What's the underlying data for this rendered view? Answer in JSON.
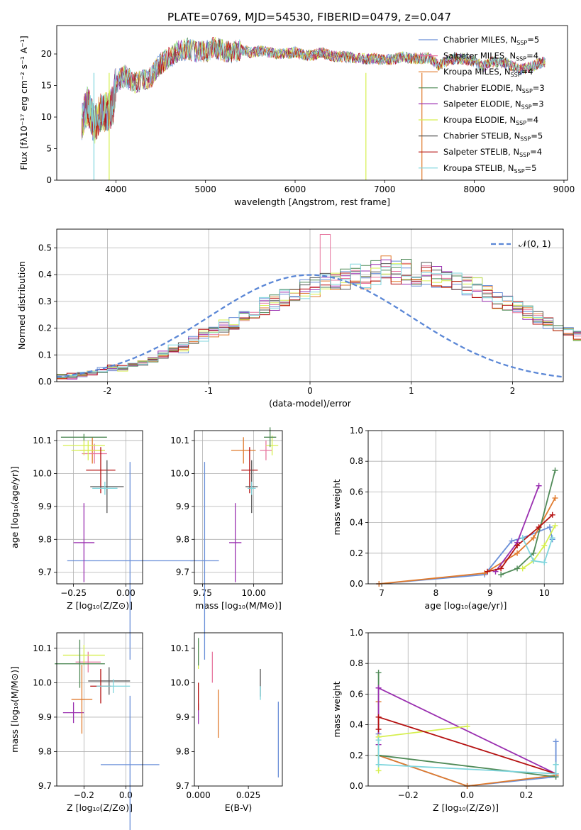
{
  "title": "PLATE=0769, MJD=54530, FIBERID=0479, z=0.047",
  "colors": {
    "chabrier_miles": "#6a8fd8",
    "salpeter_miles": "#e7779f",
    "kroupa_miles": "#e07a2c",
    "chabrier_elodie": "#4f8a57",
    "salpeter_elodie": "#9a2fb0",
    "kroupa_elodie": "#d6ef4f",
    "chabrier_stelib": "#555555",
    "salpeter_stelib": "#b51010",
    "kroupa_stelib": "#7fd5dd"
  },
  "legend": [
    {
      "text": "Chabrier MILES, N",
      "sub": "SSP",
      "tail": "=5",
      "color": "#6a8fd8"
    },
    {
      "text": "Salpeter MILES, N",
      "sub": "SSP",
      "tail": "=4",
      "color": "#e7779f"
    },
    {
      "text": "Kroupa MILES, N",
      "sub": "SSP",
      "tail": "=4",
      "color": "#e07a2c"
    },
    {
      "text": "Chabrier ELODIE, N",
      "sub": "SSP",
      "tail": "=3",
      "color": "#4f8a57"
    },
    {
      "text": "Salpeter ELODIE, N",
      "sub": "SSP",
      "tail": "=3",
      "color": "#9a2fb0"
    },
    {
      "text": "Kroupa ELODIE, N",
      "sub": "SSP",
      "tail": "=4",
      "color": "#d6ef4f"
    },
    {
      "text": "Chabrier STELIB, N",
      "sub": "SSP",
      "tail": "=5",
      "color": "#555555"
    },
    {
      "text": "Salpeter STELIB, N",
      "sub": "SSP",
      "tail": "=4",
      "color": "#b51010"
    },
    {
      "text": "Kroupa STELIB, N",
      "sub": "SSP",
      "tail": "=5",
      "color": "#7fd5dd"
    }
  ],
  "chart_data": [
    {
      "id": "spectrum",
      "type": "line",
      "xlabel": "wavelength [Angstrom, rest frame]",
      "ylabel": "Flux [fλ10⁻¹⁷ erg cm⁻² s⁻¹ A⁻¹]",
      "xlim": [
        3340,
        9040
      ],
      "ylim": [
        0,
        24.5
      ],
      "xticks": [
        4000,
        5000,
        6000,
        7000,
        8000,
        9000
      ],
      "yticks": [
        0,
        5,
        10,
        15,
        20
      ],
      "grid": false,
      "legend_position": "right",
      "x": [
        3620,
        3680,
        3720,
        3760,
        3820,
        3870,
        3930,
        3970,
        4000,
        4100,
        4200,
        4300,
        4400,
        4500,
        4600,
        4700,
        4800,
        4900,
        5000,
        5100,
        5200,
        5300,
        5400,
        5500,
        5600,
        5700,
        5800,
        5900,
        6000,
        6100,
        6200,
        6300,
        6400,
        6500,
        6600,
        6700,
        6800,
        6900,
        7000,
        7100,
        7200,
        7300,
        7400,
        7500,
        7600,
        7700,
        7800,
        7900,
        8000,
        8100,
        8200,
        8300,
        8400,
        8500,
        8600,
        8700,
        8800
      ],
      "y": [
        9.5,
        11.8,
        10.5,
        8.5,
        10.5,
        10.8,
        11.0,
        12.0,
        15.5,
        16.5,
        15.5,
        15.8,
        16.5,
        18.5,
        19.5,
        20.5,
        20.8,
        20.3,
        20.3,
        21.0,
        20.5,
        20.3,
        20.7,
        20.2,
        20.5,
        20.3,
        20.0,
        20.0,
        20.3,
        19.8,
        19.8,
        20.2,
        19.7,
        19.6,
        19.5,
        19.3,
        19.2,
        19.3,
        19.0,
        19.2,
        19.5,
        19.3,
        19.3,
        19.4,
        18.2,
        19.0,
        19.3,
        19.2,
        18.8,
        18.0,
        18.8,
        18.6,
        18.3,
        17.5,
        17.8,
        18.4,
        18.8
      ],
      "dropouts": [
        {
          "x": 3755,
          "ylo": 0,
          "color": "#7fd5dd"
        },
        {
          "x": 3925,
          "ylo": 0,
          "color": "#d6ef4f"
        },
        {
          "x": 6790,
          "ylo": 0,
          "color": "#d6ef4f"
        },
        {
          "x": 7415,
          "ylo": 0,
          "color": "#e07a2c"
        }
      ]
    },
    {
      "id": "residuals",
      "type": "histogram",
      "xlabel": "(data-model)/error",
      "ylabel": "Normed distribution",
      "xlim": [
        -2.5,
        2.5
      ],
      "ylim": [
        0,
        0.57
      ],
      "xticks": [
        -2,
        -1,
        0,
        1,
        2
      ],
      "yticks": [
        0.0,
        0.1,
        0.2,
        0.3,
        0.4,
        0.5
      ],
      "grid": true,
      "legend_label": "𝒩(0, 1)",
      "bin_width": 0.1,
      "bin_start": -2.5,
      "base_values": [
        0.02,
        0.02,
        0.03,
        0.03,
        0.04,
        0.05,
        0.05,
        0.06,
        0.07,
        0.08,
        0.1,
        0.12,
        0.13,
        0.15,
        0.17,
        0.19,
        0.2,
        0.22,
        0.24,
        0.26,
        0.28,
        0.3,
        0.31,
        0.33,
        0.35,
        0.36,
        0.37,
        0.38,
        0.39,
        0.4,
        0.4,
        0.41,
        0.42,
        0.41,
        0.41,
        0.4,
        0.4,
        0.39,
        0.38,
        0.37,
        0.36,
        0.35,
        0.33,
        0.31,
        0.3,
        0.28,
        0.26,
        0.24,
        0.22,
        0.2,
        0.19,
        0.17,
        0.15,
        0.13,
        0.12,
        0.1,
        0.09,
        0.08,
        0.07,
        0.06,
        0.05,
        0.04,
        0.04,
        0.03,
        0.03,
        0.02,
        0.02,
        0.02,
        0.02,
        0.02
      ],
      "peak_note": 0.55
    },
    {
      "id": "age-vs-Z",
      "type": "errorbar",
      "xlabel": "Z [log₁₀(Z/Z⊙)]",
      "ylabel": "age  [log₁₀(age/yr)]",
      "xlim": [
        -0.33,
        0.08
      ],
      "ylim": [
        9.665,
        10.13
      ],
      "xticks": [
        -0.25,
        0.0
      ],
      "xtick_labels": [
        "−0.25",
        "0.00"
      ],
      "yticks": [
        9.7,
        9.8,
        9.9,
        10.0,
        10.1
      ],
      "grid": true,
      "points": [
        {
          "x": 0.02,
          "xerr": 0.3,
          "y": 9.735,
          "yerr": 0.3,
          "c": "chabrier_miles"
        },
        {
          "x": -0.2,
          "xerr": 0.05,
          "y": 9.79,
          "yerr": 0.12,
          "c": "salpeter_elodie"
        },
        {
          "x": -0.16,
          "xerr": 0.06,
          "y": 10.07,
          "yerr": 0.04,
          "c": "kroupa_miles"
        },
        {
          "x": -0.15,
          "xerr": 0.06,
          "y": 10.06,
          "yerr": 0.03,
          "c": "salpeter_miles"
        },
        {
          "x": -0.2,
          "xerr": 0.1,
          "y": 10.085,
          "yerr": 0.03,
          "c": "kroupa_elodie"
        },
        {
          "x": -0.18,
          "xerr": 0.08,
          "y": 10.07,
          "yerr": 0.03,
          "c": "kroupa_elodie"
        },
        {
          "x": -0.2,
          "xerr": 0.11,
          "y": 10.11,
          "yerr": 0.01,
          "c": "chabrier_elodie"
        },
        {
          "x": -0.12,
          "xerr": 0.07,
          "y": 10.01,
          "yerr": 0.07,
          "c": "salpeter_stelib"
        },
        {
          "x": -0.09,
          "xerr": 0.08,
          "y": 9.96,
          "yerr": 0.08,
          "c": "chabrier_stelib"
        },
        {
          "x": -0.1,
          "xerr": 0.06,
          "y": 9.955,
          "yerr": 0.02,
          "c": "kroupa_stelib"
        }
      ]
    },
    {
      "id": "age-vs-mass",
      "type": "errorbar",
      "xlabel": "mass [log₁₀(M/M⊙)]",
      "xlim": [
        9.71,
        10.14
      ],
      "ylim": [
        9.665,
        10.13
      ],
      "xticks": [
        9.75,
        10.0
      ],
      "xtick_labels": [
        "9.75",
        "10.00"
      ],
      "yticks": [
        9.7,
        9.8,
        9.9,
        10.0,
        10.1
      ],
      "grid": true,
      "points": [
        {
          "x": 9.76,
          "xerr": 0.07,
          "y": 9.735,
          "yerr": 0.3,
          "c": "chabrier_miles"
        },
        {
          "x": 9.91,
          "xerr": 0.03,
          "y": 9.79,
          "yerr": 0.12,
          "c": "salpeter_elodie"
        },
        {
          "x": 9.95,
          "xerr": 0.06,
          "y": 10.07,
          "yerr": 0.04,
          "c": "kroupa_miles"
        },
        {
          "x": 10.06,
          "xerr": 0.03,
          "y": 10.07,
          "yerr": 0.03,
          "c": "salpeter_miles"
        },
        {
          "x": 10.09,
          "xerr": 0.03,
          "y": 10.085,
          "yerr": 0.03,
          "c": "kroupa_elodie"
        },
        {
          "x": 10.08,
          "xerr": 0.03,
          "y": 10.11,
          "yerr": 0.03,
          "c": "chabrier_elodie"
        },
        {
          "x": 9.98,
          "xerr": 0.04,
          "y": 10.01,
          "yerr": 0.07,
          "c": "salpeter_stelib"
        },
        {
          "x": 9.99,
          "xerr": 0.03,
          "y": 9.96,
          "yerr": 0.08,
          "c": "chabrier_stelib"
        },
        {
          "x": 9.99,
          "xerr": 0.02,
          "y": 9.955,
          "yerr": 0.02,
          "c": "kroupa_stelib"
        }
      ]
    },
    {
      "id": "mass-weight-vs-age",
      "type": "line",
      "xlabel": "age  [log₁₀(age/yr)]",
      "ylabel": "mass weight",
      "xlim": [
        6.75,
        10.35
      ],
      "ylim": [
        0,
        1.0
      ],
      "xticks": [
        7,
        8,
        9,
        10
      ],
      "yticks": [
        0.0,
        0.2,
        0.4,
        0.6,
        0.8,
        1.0
      ],
      "grid": true,
      "series": [
        {
          "c": "chabrier_miles",
          "x": [
            6.95,
            8.9,
            9.4,
            9.6,
            10.1,
            10.15
          ],
          "y": [
            0.0,
            0.06,
            0.28,
            0.3,
            0.37,
            0.29
          ]
        },
        {
          "c": "kroupa_miles",
          "x": [
            6.95,
            8.9,
            9.5,
            9.8,
            10.2
          ],
          "y": [
            0.0,
            0.07,
            0.2,
            0.3,
            0.56
          ]
        },
        {
          "c": "chabrier_elodie",
          "x": [
            9.2,
            9.5,
            9.8,
            10.2
          ],
          "y": [
            0.06,
            0.1,
            0.2,
            0.74
          ]
        },
        {
          "c": "salpeter_elodie",
          "x": [
            9.1,
            9.5,
            9.9
          ],
          "y": [
            0.08,
            0.27,
            0.64
          ]
        },
        {
          "c": "kroupa_elodie",
          "x": [
            9.6,
            9.8,
            10.0,
            10.2
          ],
          "y": [
            0.1,
            0.15,
            0.25,
            0.38
          ]
        },
        {
          "c": "salpeter_stelib",
          "x": [
            8.95,
            9.2,
            9.5,
            9.9,
            10.15
          ],
          "y": [
            0.08,
            0.1,
            0.25,
            0.37,
            0.45
          ]
        },
        {
          "c": "kroupa_stelib",
          "x": [
            9.6,
            9.8,
            10.0,
            10.15
          ],
          "y": [
            0.3,
            0.15,
            0.14,
            0.3
          ]
        }
      ]
    },
    {
      "id": "mass-vs-Z",
      "type": "errorbar",
      "xlabel": "Z [log₁₀(Z/Z⊙)]",
      "ylabel": "mass [log₁₀(M/M⊙)]",
      "xlim": [
        -0.33,
        0.08
      ],
      "ylim": [
        9.7,
        10.145
      ],
      "xticks": [
        -0.2,
        0.0
      ],
      "xtick_labels": [
        "−0.2",
        "0.0"
      ],
      "yticks": [
        9.7,
        9.8,
        9.9,
        10.0,
        10.1
      ],
      "grid": true,
      "points": [
        {
          "x": 0.02,
          "xerr": 0.14,
          "y": 9.762,
          "yerr": 0.2,
          "c": "chabrier_miles"
        },
        {
          "x": -0.25,
          "xerr": 0.05,
          "y": 9.913,
          "yerr": 0.03,
          "c": "salpeter_elodie"
        },
        {
          "x": -0.21,
          "xerr": 0.05,
          "y": 9.952,
          "yerr": 0.1,
          "c": "kroupa_miles"
        },
        {
          "x": -0.18,
          "xerr": 0.06,
          "y": 10.06,
          "yerr": 0.03,
          "c": "salpeter_miles"
        },
        {
          "x": -0.2,
          "xerr": 0.1,
          "y": 10.08,
          "yerr": 0.03,
          "c": "kroupa_elodie"
        },
        {
          "x": -0.22,
          "xerr": 0.12,
          "y": 10.055,
          "yerr": 0.07,
          "c": "chabrier_elodie"
        },
        {
          "x": -0.08,
          "xerr": 0.1,
          "y": 10.005,
          "yerr": 0.04,
          "c": "chabrier_stelib"
        },
        {
          "x": -0.12,
          "xerr": 0.05,
          "y": 9.99,
          "yerr": 0.05,
          "c": "salpeter_stelib"
        },
        {
          "x": -0.06,
          "xerr": 0.08,
          "y": 9.99,
          "yerr": 0.02,
          "c": "kroupa_stelib"
        }
      ]
    },
    {
      "id": "mass-vs-EBV",
      "type": "errorbar",
      "xlabel": "E(B-V)",
      "xlim": [
        -0.002,
        0.042
      ],
      "ylim": [
        9.7,
        10.145
      ],
      "xticks": [
        0.0,
        0.025
      ],
      "xtick_labels": [
        "0.000",
        "0.025"
      ],
      "yticks": [
        9.7,
        9.8,
        9.9,
        10.0,
        10.1
      ],
      "grid": false,
      "points": [
        {
          "x": 0.04,
          "y": 9.835,
          "yerr": 0.11,
          "c": "chabrier_miles"
        },
        {
          "x": 0.0,
          "y": 9.91,
          "yerr": 0.03,
          "c": "salpeter_elodie"
        },
        {
          "x": 0.01,
          "y": 9.91,
          "yerr": 0.07,
          "c": "kroupa_miles"
        },
        {
          "x": 0.007,
          "y": 10.045,
          "yerr": 0.045,
          "c": "salpeter_miles"
        },
        {
          "x": 0.0,
          "y": 10.08,
          "yerr": 0.04,
          "c": "kroupa_elodie"
        },
        {
          "x": 0.0,
          "y": 10.09,
          "yerr": 0.04,
          "c": "chabrier_elodie"
        },
        {
          "x": 0.0,
          "y": 9.96,
          "yerr": 0.04,
          "c": "salpeter_stelib"
        },
        {
          "x": 0.031,
          "y": 10.0,
          "yerr": 0.04,
          "c": "chabrier_stelib"
        },
        {
          "x": 0.031,
          "y": 9.97,
          "yerr": 0.02,
          "c": "kroupa_stelib"
        }
      ]
    },
    {
      "id": "mass-weight-vs-Z",
      "type": "line",
      "xlabel": "Z [log₁₀(Z/Z⊙)]",
      "ylabel": "mass weight",
      "xlim": [
        -0.335,
        0.325
      ],
      "ylim": [
        0,
        1.0
      ],
      "xticks": [
        -0.2,
        0.0,
        0.2
      ],
      "xtick_labels": [
        "−0.2",
        "0.0",
        "0.2"
      ],
      "yticks": [
        0.0,
        0.2,
        0.4,
        0.6,
        0.8,
        1.0
      ],
      "grid": true,
      "series": [
        {
          "c": "chabrier_miles",
          "x": [
            -0.3,
            -0.3,
            0.0,
            0.3,
            0.3
          ],
          "y": [
            0.34,
            0.2,
            0.0,
            0.06,
            0.29
          ]
        },
        {
          "c": "kroupa_miles",
          "x": [
            -0.3,
            -0.3,
            0.0,
            0.3
          ],
          "y": [
            0.55,
            0.2,
            0.0,
            0.07
          ]
        },
        {
          "c": "chabrier_elodie",
          "x": [
            -0.3,
            -0.3,
            0.3,
            0.3
          ],
          "y": [
            0.74,
            0.2,
            0.06,
            0.14
          ]
        },
        {
          "c": "salpeter_elodie",
          "x": [
            -0.3,
            -0.3,
            0.3
          ],
          "y": [
            0.27,
            0.64,
            0.08
          ]
        },
        {
          "c": "kroupa_elodie",
          "x": [
            -0.3,
            -0.3,
            0.0
          ],
          "y": [
            0.1,
            0.32,
            0.39
          ]
        },
        {
          "c": "salpeter_stelib",
          "x": [
            -0.3,
            -0.3,
            0.3
          ],
          "y": [
            0.37,
            0.45,
            0.08
          ]
        },
        {
          "c": "kroupa_stelib",
          "x": [
            -0.3,
            -0.3,
            0.3,
            0.3
          ],
          "y": [
            0.3,
            0.14,
            0.08,
            0.14
          ]
        }
      ]
    }
  ]
}
